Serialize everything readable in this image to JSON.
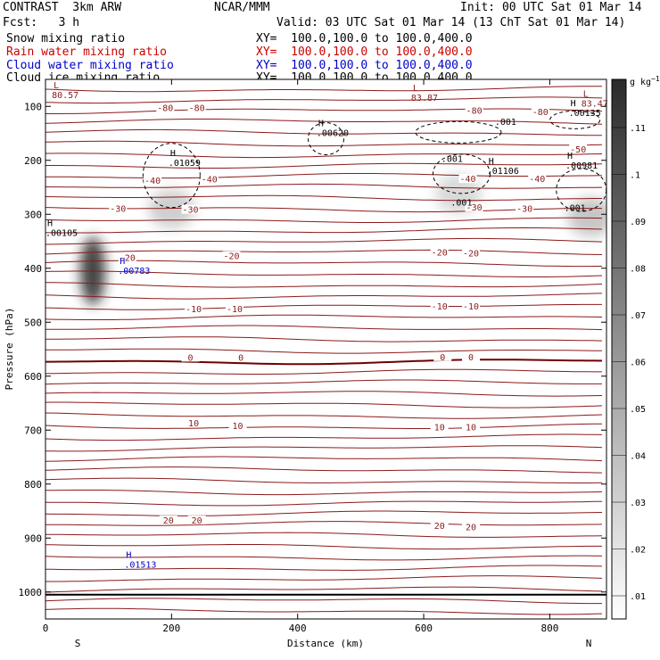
{
  "header": {
    "model": "CONTRAST  3km ARW",
    "center": "NCAR/MMM",
    "init": "Init: 00 UTC Sat 01 Mar 14",
    "fcst": "Fcst:   3 h",
    "valid": "Valid: 03 UTC Sat 01 Mar 14 (13 ChT Sat 01 Mar 14)"
  },
  "fields": [
    {
      "name": "Snow mixing ratio",
      "xy": "XY=  100.0,100.0 to 100.0,400.0",
      "color": "#000000"
    },
    {
      "name": "Rain water mixing ratio",
      "xy": "XY=  100.0,100.0 to 100.0,400.0",
      "color": "#cc0000"
    },
    {
      "name": "Cloud water mixing ratio",
      "xy": "XY=  100.0,100.0 to 100.0,400.0",
      "color": "#0000cc"
    },
    {
      "name": "Cloud ice mixing ratio",
      "xy": "XY=  100.0,100.0 to 100.0,400.0",
      "color": "#000000"
    }
  ],
  "colorbar": {
    "unit": "g kg",
    "unit_sup": "−1",
    "labels": [
      ".11",
      ".1",
      ".09",
      ".08",
      ".07",
      ".06",
      ".05",
      ".04",
      ".03",
      ".02",
      ".01"
    ]
  },
  "chart_data": {
    "type": "heatmap",
    "xlabel": "Distance (km)",
    "ylabel": "Pressure (hPa)",
    "xlim": [
      0,
      890
    ],
    "ylim": [
      1050,
      50
    ],
    "y_scale": "linear-pressure",
    "x_ticks": [
      0,
      200,
      400,
      600,
      800
    ],
    "y_ticks": [
      100,
      200,
      300,
      400,
      500,
      600,
      700,
      800,
      900,
      1000
    ],
    "x_endpoints": {
      "left": "S",
      "right": "N"
    },
    "temperature_labels": [
      {
        "text": "-80",
        "x": 190,
        "p": 105
      },
      {
        "text": "-80",
        "x": 240,
        "p": 105
      },
      {
        "text": "-80",
        "x": 680,
        "p": 110
      },
      {
        "text": "-80",
        "x": 785,
        "p": 113
      },
      {
        "text": "-50",
        "x": 845,
        "p": 182
      },
      {
        "text": "-40",
        "x": 170,
        "p": 240
      },
      {
        "text": "-40",
        "x": 260,
        "p": 238
      },
      {
        "text": "-40",
        "x": 670,
        "p": 237
      },
      {
        "text": "-40",
        "x": 780,
        "p": 237
      },
      {
        "text": "-30",
        "x": 115,
        "p": 292
      },
      {
        "text": "-30",
        "x": 230,
        "p": 294
      },
      {
        "text": "-30",
        "x": 680,
        "p": 290
      },
      {
        "text": "-30",
        "x": 760,
        "p": 292
      },
      {
        "text": "-20",
        "x": 130,
        "p": 383
      },
      {
        "text": "-20",
        "x": 295,
        "p": 380
      },
      {
        "text": "-20",
        "x": 625,
        "p": 373
      },
      {
        "text": "-20",
        "x": 675,
        "p": 375
      },
      {
        "text": "-10",
        "x": 235,
        "p": 478
      },
      {
        "text": "-10",
        "x": 300,
        "p": 478
      },
      {
        "text": "-10",
        "x": 625,
        "p": 473
      },
      {
        "text": "-10",
        "x": 675,
        "p": 473
      },
      {
        "text": "0",
        "x": 230,
        "p": 568
      },
      {
        "text": "0",
        "x": 310,
        "p": 568
      },
      {
        "text": "0",
        "x": 630,
        "p": 567
      },
      {
        "text": "0",
        "x": 675,
        "p": 567
      },
      {
        "text": "10",
        "x": 235,
        "p": 690
      },
      {
        "text": "10",
        "x": 305,
        "p": 695
      },
      {
        "text": "10",
        "x": 625,
        "p": 697
      },
      {
        "text": "10",
        "x": 675,
        "p": 697
      },
      {
        "text": "20",
        "x": 195,
        "p": 870
      },
      {
        "text": "20",
        "x": 240,
        "p": 870
      },
      {
        "text": "20",
        "x": 625,
        "p": 880
      },
      {
        "text": "20",
        "x": 675,
        "p": 882
      }
    ],
    "extrema_labels": [
      {
        "mark": "L",
        "value": "80.57",
        "x": 10,
        "p": 85,
        "color": "#8b1a1a"
      },
      {
        "mark": "L",
        "value": "83.87",
        "x": 580,
        "p": 90,
        "color": "#8b1a1a"
      },
      {
        "mark": "L",
        "value": "83.47",
        "x": 850,
        "p": 100,
        "color": "#8b1a1a"
      },
      {
        "mark": "H",
        "value": ".00135",
        "x": 830,
        "p": 118,
        "color": "#000000"
      },
      {
        "mark": "H",
        "value": ".00620",
        "x": 430,
        "p": 155,
        "color": "#000000"
      },
      {
        "mark": "H",
        "value": ".01059",
        "x": 195,
        "p": 210,
        "color": "#000000"
      },
      {
        "mark": "H",
        "value": ".01106",
        "x": 700,
        "p": 225,
        "color": "#000000"
      },
      {
        "mark": "H",
        "value": ".00981",
        "x": 825,
        "p": 215,
        "color": "#000000"
      },
      {
        "mark": "H",
        "value": ".00105",
        "x": 0,
        "p": 340,
        "color": "#000000"
      },
      {
        "mark": "H",
        "value": ".00783",
        "x": 115,
        "p": 410,
        "color": "#0000cc"
      },
      {
        "mark": "H",
        "value": ".01513",
        "x": 125,
        "p": 955,
        "color": "#0000cc"
      }
    ],
    "ice_contour_labels": [
      {
        "text": ".001",
        "x": 730,
        "p": 134
      },
      {
        "text": ".001",
        "x": 645,
        "p": 203
      },
      {
        "text": ".001",
        "x": 660,
        "p": 284
      },
      {
        "text": ".001",
        "x": 840,
        "p": 294
      }
    ],
    "ice_maxima": [
      {
        "x": 200,
        "p": 290,
        "intensity": 0.28
      },
      {
        "x": 655,
        "p": 262,
        "intensity": 0.22
      },
      {
        "x": 865,
        "p": 305,
        "intensity": 0.33
      },
      {
        "x": 75,
        "p": 405,
        "intensity": 0.85
      }
    ]
  }
}
